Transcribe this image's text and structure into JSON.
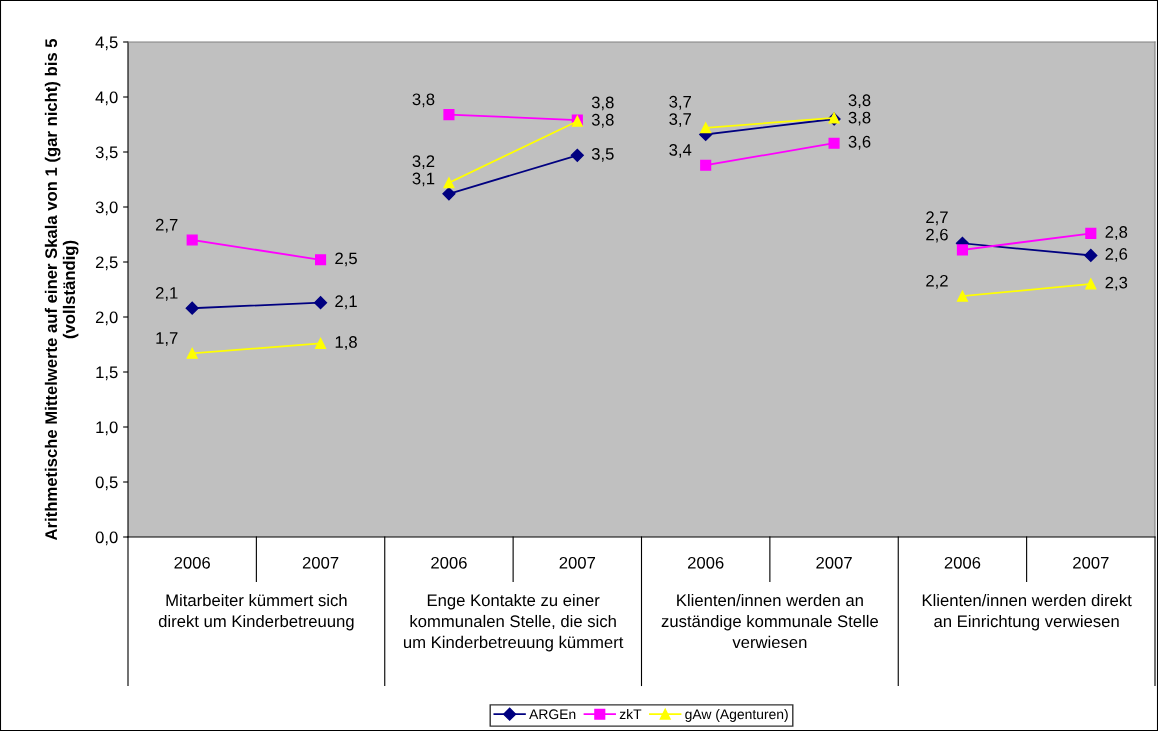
{
  "chart_data": {
    "type": "line",
    "ylabel": "Arithmetische Mittelwerte auf einer Skala von 1 (gar nicht) bis 5\n(vollständig)",
    "categories": [
      "2006",
      "2007",
      "2006",
      "2007",
      "2006",
      "2007",
      "2006",
      "2007"
    ],
    "annotations": [
      "Mitarbeiter kümmert sich\ndirekt um Kinderbetreuung",
      "Enge Kontakte zu einer\nkommunalen Stelle, die sich\num Kinderbetreuung kümmert",
      "Klienten/innen werden an\nzuständige kommunale Stelle\nverwiesen",
      "Klienten/innen werden direkt\nan Einrichtung verwiesen"
    ],
    "series": [
      {
        "name": "ARGEn",
        "color": "#000080",
        "marker": "diamond",
        "values": [
          2.08,
          2.13,
          3.12,
          3.47,
          3.66,
          3.8,
          2.67,
          2.56
        ],
        "value_labels": [
          "2,1",
          "2,1",
          "3,1",
          "3,5",
          "3,7",
          "3,8",
          "2,7",
          "2,6"
        ]
      },
      {
        "name": "zkT",
        "color": "#ff00ff",
        "marker": "square",
        "values": [
          2.7,
          2.52,
          3.84,
          3.79,
          3.38,
          3.58,
          2.61,
          2.76
        ],
        "value_labels": [
          "2,7",
          "2,5",
          "3,8",
          "3,8",
          "3,4",
          "3,6",
          "2,6",
          "2,8"
        ]
      },
      {
        "name": "gAw (Agenturen)",
        "color": "#ffff00",
        "marker": "triangle",
        "values": [
          1.67,
          1.76,
          3.22,
          3.78,
          3.72,
          3.81,
          2.19,
          2.3
        ],
        "value_labels": [
          "1,7",
          "1,8",
          "3,2",
          "3,8",
          "3,7",
          "3,8",
          "2,2",
          "2,3"
        ]
      }
    ],
    "ylim": [
      0,
      4.5
    ],
    "yticks": [
      {
        "value": 0,
        "label": "0,0"
      },
      {
        "value": 0.5,
        "label": "0,5"
      },
      {
        "value": 1,
        "label": "1,0"
      },
      {
        "value": 1.5,
        "label": "1,5"
      },
      {
        "value": 2,
        "label": "2,0"
      },
      {
        "value": 2.5,
        "label": "2,5"
      },
      {
        "value": 3,
        "label": "3,0"
      },
      {
        "value": 3.5,
        "label": "3,5"
      },
      {
        "value": 4,
        "label": "4,0"
      },
      {
        "value": 4.5,
        "label": "4,5"
      }
    ],
    "grid": false,
    "legend": "bottom"
  }
}
